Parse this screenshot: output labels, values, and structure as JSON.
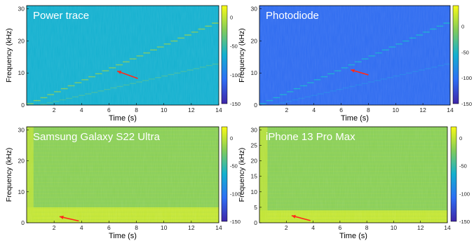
{
  "chart_data": [
    {
      "type": "heatmap",
      "title": "Power trace",
      "xlabel": "Time (s)",
      "ylabel": "Frequency (kHz)",
      "xlim": [
        0,
        14
      ],
      "ylim": [
        0,
        31
      ],
      "xticks": [
        2,
        4,
        6,
        8,
        10,
        12,
        14
      ],
      "yticks": [
        0,
        10,
        20,
        30
      ],
      "clim": [
        -150,
        20
      ],
      "cticks": [
        0,
        -50,
        -100,
        -150
      ],
      "colormap": "parula",
      "background_level": -65,
      "sweep": {
        "shape": "stepped-linear",
        "t_start": 0,
        "f_start": 0,
        "t_end": 14,
        "f_end": 26,
        "level": -25
      },
      "harmonic": {
        "t_start": 1,
        "f_start": 0,
        "t_end": 14,
        "f_end": 13,
        "level": -50
      },
      "arrow": {
        "from": [
          8.1,
          8.3
        ],
        "to": [
          6.6,
          10.6
        ],
        "color": "#ff2a1a"
      }
    },
    {
      "type": "heatmap",
      "title": "Photodiode",
      "xlabel": "Time (s)",
      "ylabel": "Frequency (kHz)",
      "xlim": [
        0,
        14
      ],
      "ylim": [
        0,
        31
      ],
      "xticks": [
        2,
        4,
        6,
        8,
        10,
        12,
        14
      ],
      "yticks": [
        0,
        10,
        20,
        30
      ],
      "clim": [
        -150,
        40
      ],
      "cticks": [
        0,
        -50,
        -100,
        -150
      ],
      "colormap": "parula",
      "background_level": -105,
      "sweep": {
        "shape": "stepped-linear",
        "t_start": 0,
        "f_start": 0,
        "t_end": 14,
        "f_end": 26,
        "level": -60
      },
      "harmonic": {
        "t_start": 1,
        "f_start": 0,
        "t_end": 14,
        "f_end": 13,
        "level": -90
      },
      "arrow": {
        "from": [
          8.0,
          9.4
        ],
        "to": [
          6.7,
          11.0
        ],
        "color": "#ff2a1a"
      }
    },
    {
      "type": "heatmap",
      "title": "Samsung Galaxy S22 Ultra",
      "xlabel": "Time (s)",
      "ylabel": "Frequency (kHz)",
      "xlim": [
        0,
        14
      ],
      "ylim": [
        0,
        31
      ],
      "xticks": [
        2,
        4,
        6,
        8,
        10,
        12,
        14
      ],
      "yticks": [
        0,
        10,
        20,
        30
      ],
      "clim": [
        -150,
        20
      ],
      "cticks": [
        0,
        -50,
        -100,
        -150
      ],
      "colormap": "parula",
      "background_level": -20,
      "low_freq_band": {
        "f_max": 5,
        "level": 5
      },
      "onset_burst": {
        "t_end": 0.5,
        "level": 0
      },
      "arrow": {
        "from": [
          3.8,
          0.6
        ],
        "to": [
          2.4,
          2.0
        ],
        "color": "#ff2a1a"
      }
    },
    {
      "type": "heatmap",
      "title": "iPhone 13 Pro Max",
      "xlabel": "Time (s)",
      "ylabel": "Frequency (kHz)",
      "xlim": [
        0,
        14
      ],
      "ylim": [
        0,
        31
      ],
      "xticks": [
        2,
        4,
        6,
        8,
        10,
        12,
        14
      ],
      "yticks": [
        0,
        5,
        10,
        15,
        20,
        25,
        30
      ],
      "clim": [
        -150,
        20
      ],
      "cticks": [
        0,
        -50,
        -100,
        -150
      ],
      "colormap": "parula",
      "background_level": -20,
      "low_freq_band": {
        "f_max": 4,
        "level": 5
      },
      "onset_burst": {
        "t_end": 0.6,
        "level": 0
      },
      "arrow": {
        "from": [
          3.8,
          0.7
        ],
        "to": [
          2.4,
          2.3
        ],
        "color": "#ff2a1a"
      }
    }
  ]
}
